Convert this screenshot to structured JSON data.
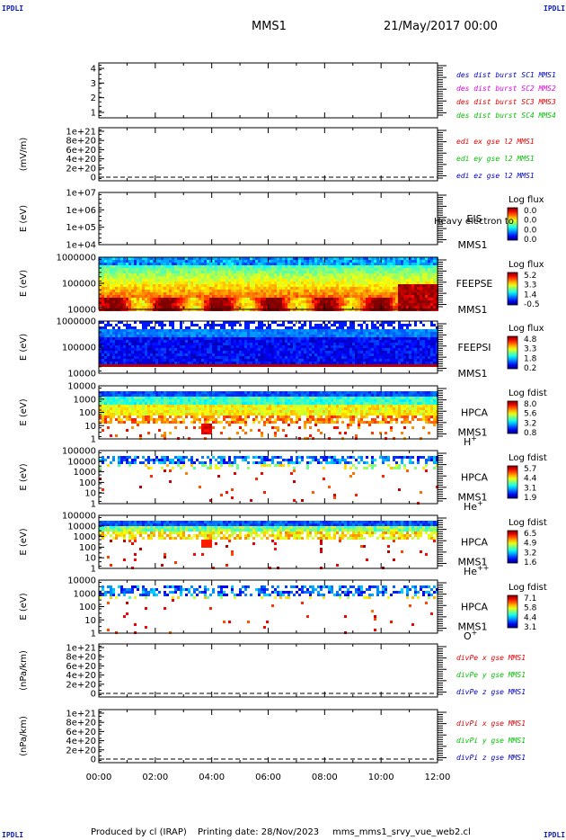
{
  "corner_label": "IPDLI",
  "header": {
    "title": "MMS1",
    "date": "21/May/2017 00:00"
  },
  "footer": {
    "produced_by": "Produced by cl (IRAP)",
    "printing_date": "Printing date: 28/Nov/2023",
    "filename": "mms_mms1_srvy_vue_web2.cl"
  },
  "colors": {
    "red": "#e00000",
    "green": "#00c000",
    "blue": "#0000c0",
    "magenta": "#e000e0",
    "frame": "#000000"
  },
  "chart_data": {
    "type": "stacked-time-series",
    "x_ticks": [
      "00:00",
      "02:00",
      "04:00",
      "06:00",
      "08:00",
      "10:00",
      "12:00"
    ],
    "x_range_hours": [
      0,
      12
    ],
    "panels": [
      {
        "type": "line",
        "ylabel": "",
        "ylim": [
          0.5,
          4.5
        ],
        "ticks": [
          "4",
          "3",
          "2",
          "1"
        ],
        "legend": [
          {
            "text": "des dist burst SC1 MMS1",
            "color": "#0000c0"
          },
          {
            "text": "des dist burst SC2 MMS2",
            "color": "#e000e0"
          },
          {
            "text": "des dist burst SC3 MMS3",
            "color": "#e00000"
          },
          {
            "text": "des dist burst SC4 MMS4",
            "color": "#00c000"
          }
        ]
      },
      {
        "type": "line",
        "ylabel": "(mV/m)",
        "ticks": [
          "1e+21",
          "8e+20",
          "6e+20",
          "4e+20",
          "2e+20",
          "0"
        ],
        "dashed_zero": true,
        "legend": [
          {
            "text": "edi ex gse l2 MMS1",
            "color": "#e00000"
          },
          {
            "text": "edi ey gse l2 MMS1",
            "color": "#00c000"
          },
          {
            "text": "edi ez gse l2 MMS1",
            "color": "#0000c0"
          }
        ]
      },
      {
        "type": "heatmap",
        "ylabel": "E (eV)",
        "ticks": [
          "1e+07",
          "1e+06",
          "1e+05",
          "1e+04"
        ],
        "instrument": "EIS",
        "spacecraft": "MMS1",
        "cb_title": "Log flux",
        "cb_ticks": [
          "0.0",
          "0.0",
          "0.0",
          "0.0"
        ],
        "overlay_text": "Heavy electron to",
        "pattern": "empty"
      },
      {
        "type": "heatmap",
        "ylabel": "E (eV)",
        "ticks": [
          "1000000",
          "100000",
          "10000"
        ],
        "instrument": "FEEPSE",
        "spacecraft": "MMS1",
        "cb_title": "Log flux",
        "cb_ticks": [
          "5.2",
          "3.3",
          "1.4",
          "-0.5"
        ],
        "pattern": "feeps_e"
      },
      {
        "type": "heatmap",
        "ylabel": "E (eV)",
        "ticks": [
          "1000000",
          "100000",
          "10000"
        ],
        "instrument": "FEEPSI",
        "spacecraft": "MMS1",
        "cb_title": "Log flux",
        "cb_ticks": [
          "4.8",
          "3.3",
          "1.8",
          "0.2"
        ],
        "pattern": "feeps_i"
      },
      {
        "type": "heatmap",
        "ylabel": "E (eV)",
        "ticks": [
          "10000",
          "1000",
          "100",
          "10",
          "1"
        ],
        "instrument": "HPCA",
        "spacecraft": "MMS1",
        "species": "H",
        "species_sup": "+",
        "cb_title": "Log fdist",
        "cb_ticks": [
          "8.0",
          "5.6",
          "3.2",
          "0.8"
        ],
        "pattern": "hpca_h"
      },
      {
        "type": "heatmap",
        "ylabel": "E (eV)",
        "ticks": [
          "100000",
          "10000",
          "1000",
          "100",
          "10",
          "1"
        ],
        "instrument": "HPCA",
        "spacecraft": "MMS1",
        "species": "He",
        "species_sup": "+",
        "cb_title": "Log fdist",
        "cb_ticks": [
          "5.7",
          "4.4",
          "3.1",
          "1.9"
        ],
        "pattern": "hpca_he1"
      },
      {
        "type": "heatmap",
        "ylabel": "E (eV)",
        "ticks": [
          "100000",
          "10000",
          "1000",
          "100",
          "10",
          "1"
        ],
        "instrument": "HPCA",
        "spacecraft": "MMS1",
        "species": "He",
        "species_sup": "++",
        "cb_title": "Log fdist",
        "cb_ticks": [
          "6.5",
          "4.9",
          "3.2",
          "1.6"
        ],
        "pattern": "hpca_he2"
      },
      {
        "type": "heatmap",
        "ylabel": "E (eV)",
        "ticks": [
          "10000",
          "1000",
          "100",
          "10",
          "1"
        ],
        "instrument": "HPCA",
        "spacecraft": "MMS1",
        "species": "O",
        "species_sup": "+",
        "cb_title": "Log fdist",
        "cb_ticks": [
          "7.1",
          "5.8",
          "4.4",
          "3.1"
        ],
        "pattern": "hpca_o"
      },
      {
        "type": "line",
        "ylabel": "(nPa/km)",
        "ticks": [
          "1e+21",
          "8e+20",
          "6e+20",
          "4e+20",
          "2e+20",
          "0"
        ],
        "dashed_zero": true,
        "legend": [
          {
            "text": "divPe x gse MMS1",
            "color": "#e00000"
          },
          {
            "text": "divPe y gse MMS1",
            "color": "#00c000"
          },
          {
            "text": "divPe z gse MMS1",
            "color": "#0000c0"
          }
        ]
      },
      {
        "type": "line",
        "ylabel": "(nPa/km)",
        "ticks": [
          "1e+21",
          "8e+20",
          "6e+20",
          "4e+20",
          "2e+20",
          "0"
        ],
        "dashed_zero": true,
        "legend": [
          {
            "text": "divPi x gse MMS1",
            "color": "#e00000"
          },
          {
            "text": "divPi y gse MMS1",
            "color": "#00c000"
          },
          {
            "text": "divPi z gse MMS1",
            "color": "#0000c0"
          }
        ]
      }
    ]
  }
}
